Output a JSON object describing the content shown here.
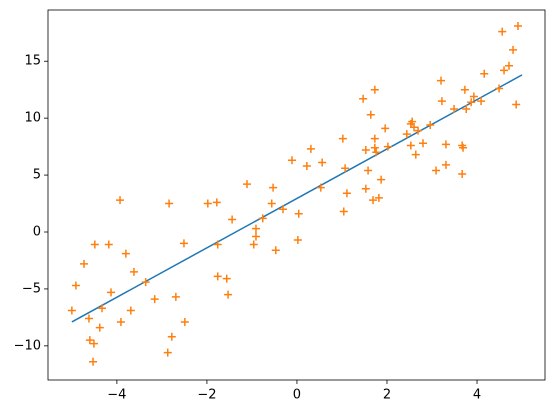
{
  "chart_data": {
    "type": "scatter",
    "xlim": [
      -5.53,
      5.51
    ],
    "ylim": [
      -13,
      19.5
    ],
    "xticks": [
      {
        "value": -4,
        "label": "−4"
      },
      {
        "value": -2,
        "label": "−2"
      },
      0,
      2,
      4
    ],
    "yticks": [
      {
        "value": -10,
        "label": "−10"
      },
      {
        "value": -5,
        "label": "−5"
      },
      0,
      5,
      10,
      15
    ],
    "series": [
      {
        "type": "line",
        "color": "#1f77b4",
        "x": [
          -5,
          5
        ],
        "values": [
          -7.9,
          13.8
        ]
      },
      {
        "type": "scatter",
        "color": "#ff7f0e",
        "x": [
          -5.0,
          -4.91,
          -4.73,
          -4.62,
          -4.6,
          -4.51,
          -4.53,
          -4.49,
          -4.38,
          -4.33,
          -4.18,
          -4.13,
          -3.93,
          -3.91,
          -3.8,
          -3.69,
          -3.62,
          -3.36,
          -3.16,
          -2.87,
          -2.84,
          -2.78,
          -2.69,
          -2.51,
          -2.49,
          -1.98,
          -1.78,
          -1.76,
          -1.76,
          -1.56,
          -1.53,
          -1.44,
          -1.11,
          -0.96,
          -0.91,
          -0.91,
          -0.76,
          -0.56,
          -0.53,
          -0.47,
          -0.31,
          -0.11,
          0.02,
          0.04,
          0.22,
          0.31,
          0.53,
          0.56,
          1.02,
          1.04,
          1.07,
          1.11,
          1.47,
          1.53,
          1.53,
          1.58,
          1.64,
          1.69,
          1.73,
          1.73,
          1.73,
          1.76,
          1.82,
          1.87,
          1.96,
          2.02,
          2.44,
          2.53,
          2.56,
          2.53,
          2.6,
          2.64,
          2.69,
          2.8,
          2.96,
          3.09,
          3.2,
          3.22,
          3.31,
          3.31,
          3.49,
          3.67,
          3.67,
          3.69,
          3.73,
          3.76,
          3.87,
          3.93,
          4.09,
          4.16,
          4.49,
          4.56,
          4.6,
          4.71,
          4.8,
          4.87,
          4.91
        ],
        "values": [
          -6.9,
          -4.7,
          -2.8,
          -7.6,
          -9.5,
          -9.8,
          -11.4,
          -1.1,
          -8.4,
          -6.7,
          -1.1,
          -5.3,
          2.8,
          -7.9,
          -1.9,
          -6.9,
          -3.5,
          -4.4,
          -5.9,
          -10.6,
          2.5,
          -9.2,
          -5.7,
          -1.0,
          -7.9,
          2.5,
          2.6,
          -1.1,
          -3.9,
          -4.1,
          -5.5,
          1.1,
          4.2,
          -1.1,
          -0.4,
          0.3,
          1.2,
          2.5,
          3.9,
          -1.6,
          2.0,
          6.3,
          -0.7,
          1.6,
          5.8,
          7.3,
          3.9,
          6.1,
          8.2,
          1.8,
          5.6,
          3.4,
          11.7,
          7.2,
          3.8,
          5.4,
          10.3,
          2.8,
          12.5,
          8.2,
          7.4,
          7.0,
          3.0,
          4.6,
          9.1,
          7.5,
          8.6,
          9.5,
          9.7,
          7.6,
          9.2,
          6.8,
          8.9,
          7.8,
          9.4,
          5.4,
          13.3,
          11.5,
          7.7,
          5.9,
          10.8,
          7.6,
          5.1,
          7.4,
          12.5,
          10.8,
          11.4,
          11.9,
          11.5,
          13.9,
          12.6,
          17.6,
          14.2,
          14.6,
          16.0,
          11.2,
          18.1
        ]
      }
    ]
  }
}
